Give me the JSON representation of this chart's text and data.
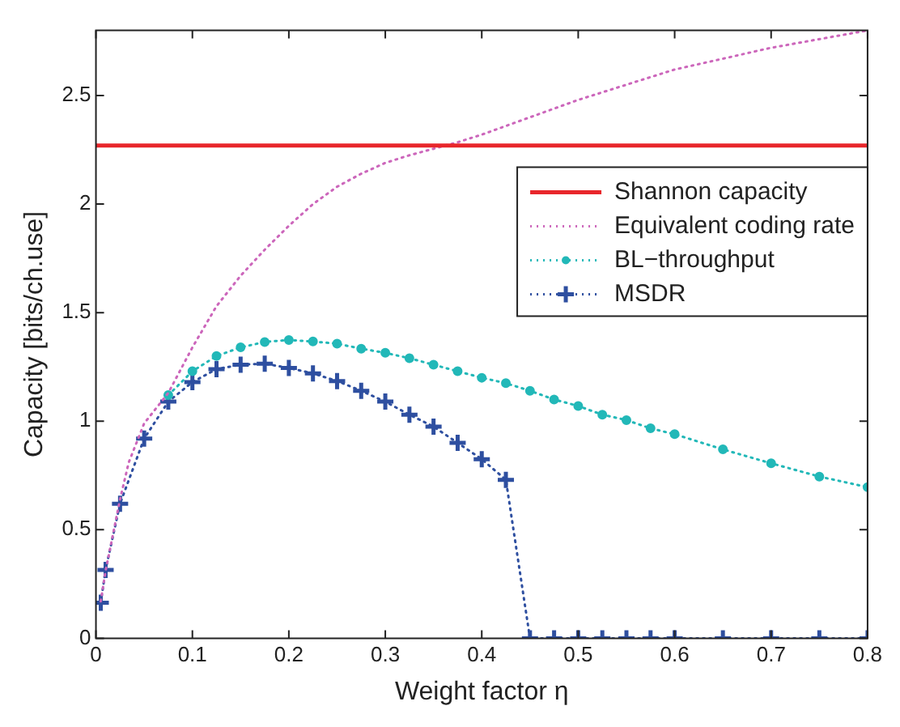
{
  "chart_data": {
    "type": "line",
    "xlabel": "Weight factor η",
    "ylabel": "Capacity [bits/ch.use]",
    "xlim": [
      0,
      0.8
    ],
    "xticks": [
      0,
      0.1,
      0.2,
      0.3,
      0.4,
      0.5,
      0.6,
      0.7,
      0.8
    ],
    "ylim": [
      0,
      2.8
    ],
    "yticks": [
      0,
      0.5,
      1,
      1.5,
      2,
      2.5
    ],
    "grid": false,
    "legend": "top right",
    "series": [
      {
        "name": "Shannon capacity",
        "color": "#e8262b",
        "line_style": "solid",
        "marker": "none",
        "x": [
          0,
          0.8
        ],
        "values": [
          2.27,
          2.27
        ]
      },
      {
        "name": "Equivalent coding rate",
        "color": "#cc66bb",
        "line_style": "dotted",
        "marker": "none",
        "x": [
          0.005,
          0.01,
          0.025,
          0.034,
          0.05,
          0.075,
          0.1,
          0.125,
          0.15,
          0.175,
          0.2,
          0.225,
          0.25,
          0.275,
          0.3,
          0.325,
          0.35,
          0.375,
          0.4,
          0.5,
          0.6,
          0.7,
          0.8
        ],
        "values": [
          0.17,
          0.31,
          0.64,
          0.81,
          0.99,
          1.13,
          1.34,
          1.53,
          1.67,
          1.79,
          1.9,
          2.0,
          2.08,
          2.14,
          2.19,
          2.225,
          2.255,
          2.285,
          2.32,
          2.48,
          2.62,
          2.72,
          2.8
        ]
      },
      {
        "name": "BL−throughput",
        "color": "#22b8b8",
        "line_style": "dotted",
        "marker": "circle",
        "x": [
          0.075,
          0.1,
          0.125,
          0.15,
          0.175,
          0.2,
          0.225,
          0.25,
          0.275,
          0.3,
          0.325,
          0.35,
          0.375,
          0.4,
          0.425,
          0.45,
          0.475,
          0.5,
          0.525,
          0.55,
          0.575,
          0.6,
          0.65,
          0.7,
          0.75,
          0.8
        ],
        "values": [
          1.12,
          1.23,
          1.3,
          1.34,
          1.365,
          1.374,
          1.367,
          1.357,
          1.334,
          1.315,
          1.29,
          1.26,
          1.23,
          1.2,
          1.175,
          1.14,
          1.1,
          1.07,
          1.03,
          1.005,
          0.967,
          0.94,
          0.87,
          0.806,
          0.745,
          0.696
        ]
      },
      {
        "name": "MSDR",
        "color": "#2e4fa0",
        "line_style": "dotted",
        "marker": "cross",
        "x": [
          0.005,
          0.01,
          0.025,
          0.05,
          0.075,
          0.1,
          0.125,
          0.15,
          0.175,
          0.2,
          0.225,
          0.25,
          0.275,
          0.3,
          0.325,
          0.35,
          0.375,
          0.4,
          0.425,
          0.45,
          0.475,
          0.5,
          0.525,
          0.55,
          0.575,
          0.6,
          0.65,
          0.7,
          0.75,
          0.8
        ],
        "values": [
          0.164,
          0.315,
          0.62,
          0.92,
          1.09,
          1.18,
          1.24,
          1.26,
          1.265,
          1.245,
          1.22,
          1.185,
          1.14,
          1.09,
          1.03,
          0.975,
          0.9,
          0.825,
          0.73,
          0,
          0,
          0,
          0,
          0,
          0,
          0,
          0,
          0,
          0,
          0
        ]
      }
    ]
  }
}
